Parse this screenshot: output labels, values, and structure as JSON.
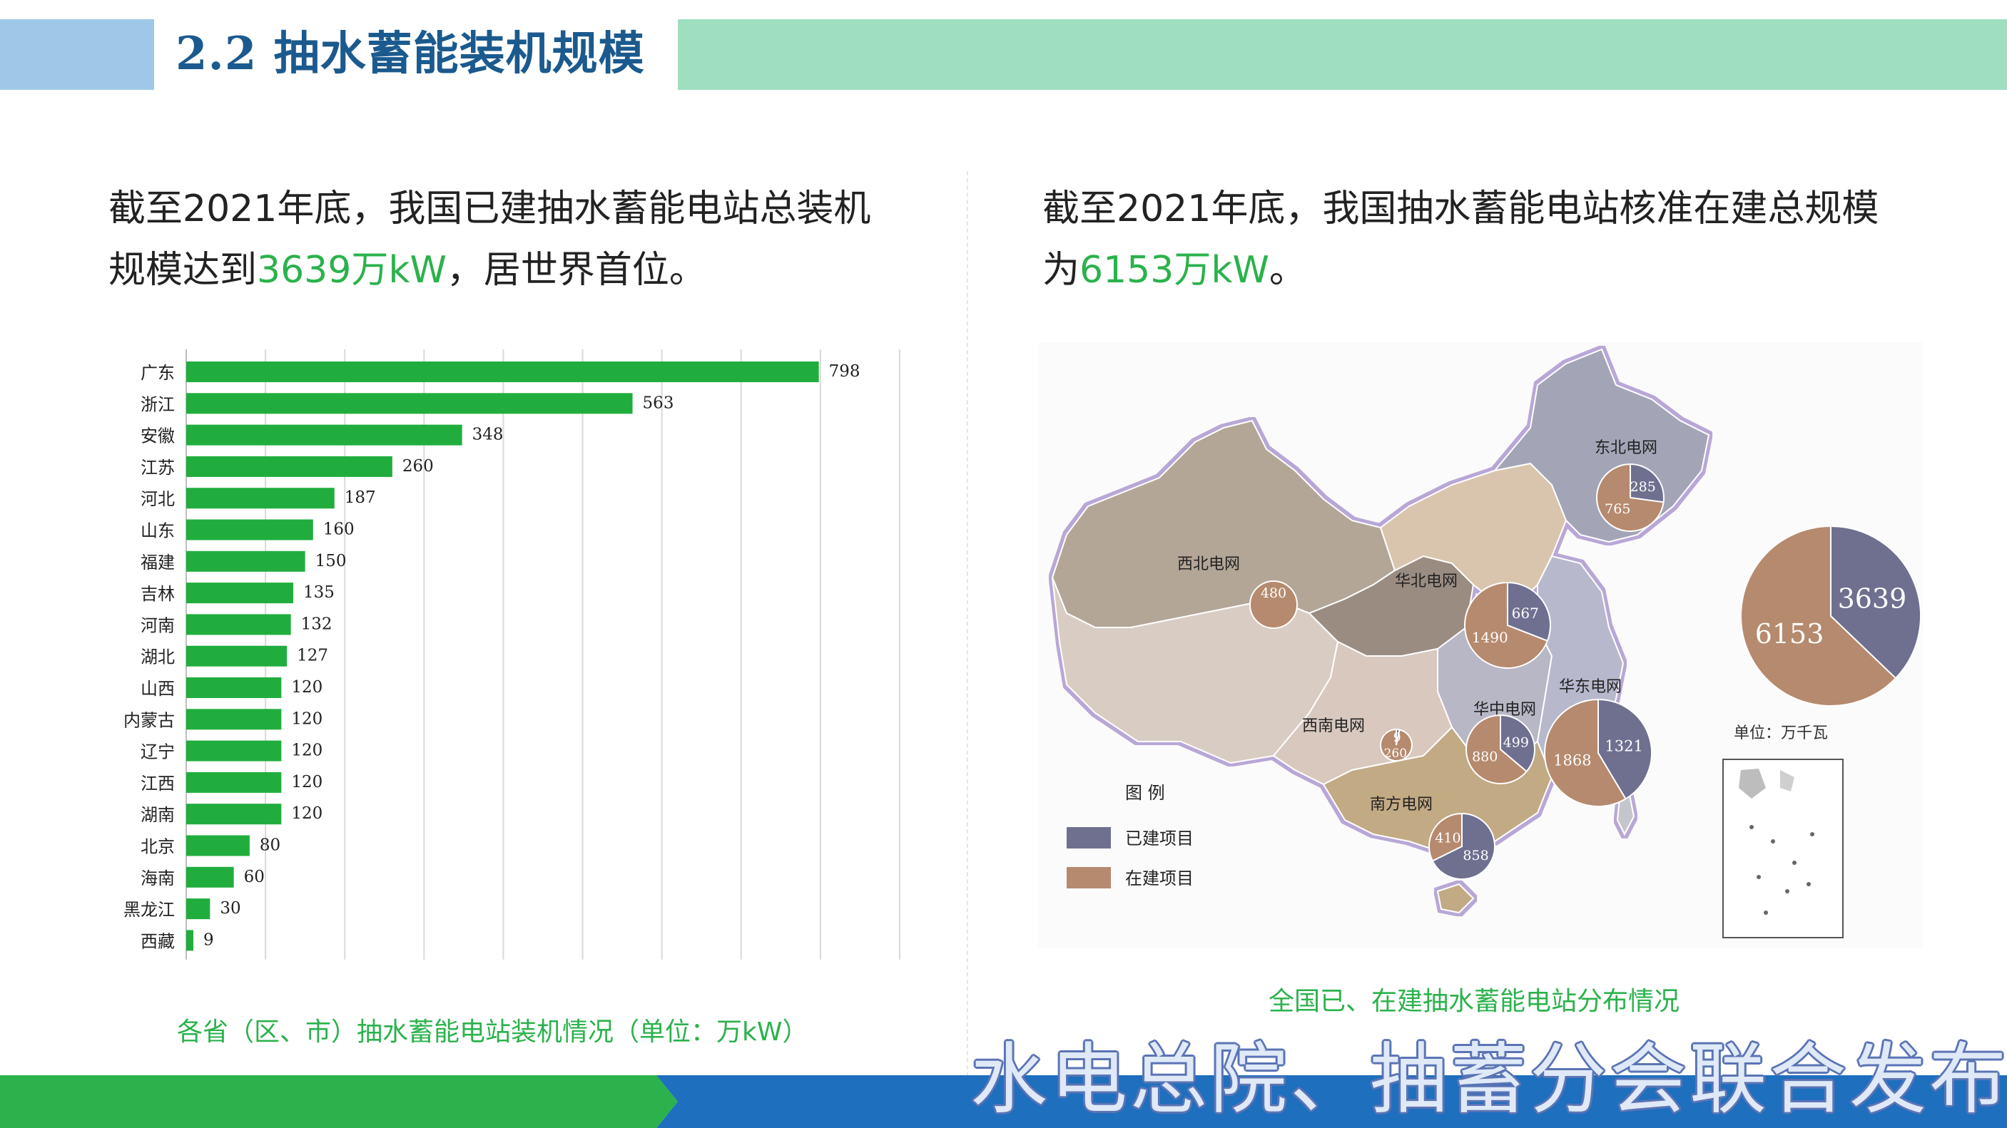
{
  "header": {
    "title": "2.2 抽水蓄能装机规模"
  },
  "left": {
    "text_before": "截至2021年底，我国已建抽水蓄能电站总装机规模达到",
    "text_highlight": "3639万kW",
    "text_after": "，居世界首位。",
    "caption": "各省（区、市）抽水蓄能电站装机情况（单位：万kW）"
  },
  "right": {
    "text_before": "截至2021年底，我国抽水蓄能电站核准在建总规模为",
    "text_highlight": "6153万kW",
    "text_after": "。",
    "caption": "全国已、在建抽水蓄能电站分布情况"
  },
  "footer": {
    "text": "水电总院、抽蓄分会联合发布"
  },
  "colors": {
    "accent_green": "#2bb24c",
    "built": "#6f7090",
    "under_construction": "#b68a6e",
    "title_blue": "#1b5a8e"
  },
  "chart_data": [
    {
      "type": "bar",
      "orientation": "horizontal",
      "categories": [
        "广东",
        "浙江",
        "安徽",
        "江苏",
        "河北",
        "山东",
        "福建",
        "吉林",
        "河南",
        "湖北",
        "山西",
        "内蒙古",
        "辽宁",
        "江西",
        "湖南",
        "北京",
        "海南",
        "黑龙江",
        "西藏"
      ],
      "values": [
        798,
        563,
        348,
        260,
        187,
        160,
        150,
        135,
        132,
        127,
        120,
        120,
        120,
        120,
        120,
        80,
        60,
        30,
        9
      ],
      "xlim": [
        0,
        900
      ],
      "grid": true,
      "bar_color": "#21ad3e"
    },
    {
      "type": "pie",
      "subtitle": "map",
      "legend": {
        "title": "图  例",
        "items": [
          "已建项目",
          "在建项目"
        ]
      },
      "regions": [
        {
          "name": "东北电网",
          "built": 285,
          "construction": 765
        },
        {
          "name": "西北电网",
          "built": null,
          "construction": 480
        },
        {
          "name": "华北电网",
          "built": 667,
          "construction": 1490
        },
        {
          "name": "西南电网",
          "built": 9,
          "construction": 260
        },
        {
          "name": "华中电网",
          "built": 499,
          "construction": 880
        },
        {
          "name": "华东电网",
          "built": 1321,
          "construction": 1868
        },
        {
          "name": "南方电网",
          "built": 858,
          "construction": 410
        }
      ],
      "total": {
        "built": 3639,
        "construction": 6153,
        "unit": "单位：万千瓦"
      }
    }
  ]
}
